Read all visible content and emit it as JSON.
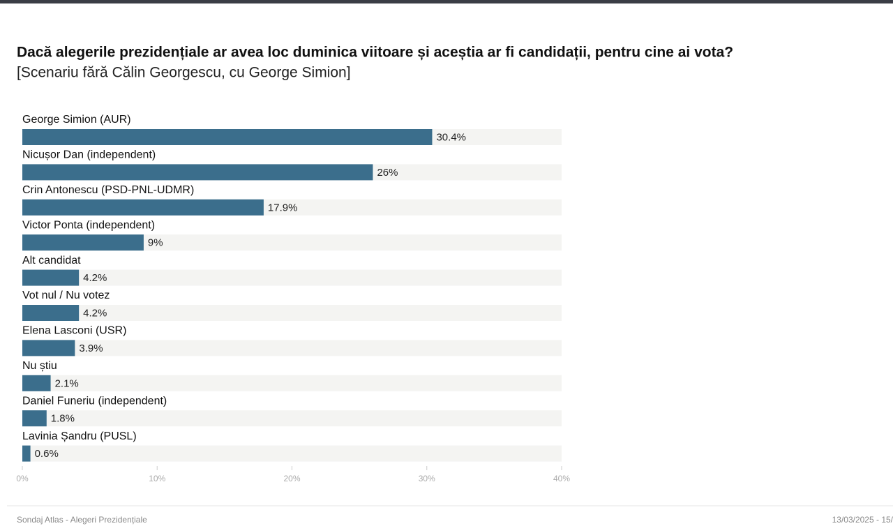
{
  "chart_data": {
    "type": "bar",
    "orientation": "horizontal",
    "title": "Dacă alegerile prezidențiale ar avea loc duminica viitoare și aceștia ar fi candidații, pentru cine ai vota?",
    "subtitle": "[Scenariu fără Călin Georgescu, cu George Simion]",
    "categories": [
      "George Simion (AUR)",
      "Nicușor Dan (independent)",
      "Crin Antonescu (PSD-PNL-UDMR)",
      "Victor Ponta (independent)",
      "Alt candidat",
      "Vot nul / Nu votez",
      "Elena Lasconi (USR)",
      "Nu știu",
      "Daniel Funeriu (independent)",
      "Lavinia Șandru (PUSL)"
    ],
    "values": [
      30.4,
      26,
      17.9,
      9,
      4.2,
      4.2,
      3.9,
      2.1,
      1.8,
      0.6
    ],
    "value_labels": [
      "30.4%",
      "26%",
      "17.9%",
      "9%",
      "4.2%",
      "4.2%",
      "3.9%",
      "2.1%",
      "1.8%",
      "0.6%"
    ],
    "color": "#3b6e8c",
    "xlim": [
      0,
      40
    ],
    "xticks": [
      {
        "value": 0,
        "label": "0%"
      },
      {
        "value": 10,
        "label": "10%"
      },
      {
        "value": 20,
        "label": "20%"
      },
      {
        "value": 30,
        "label": "30%"
      },
      {
        "value": 40,
        "label": "40%"
      }
    ]
  },
  "footer": {
    "source": "Sondaj Atlas - Alegeri Prezidențiale",
    "date": "13/03/2025 - 15/"
  }
}
